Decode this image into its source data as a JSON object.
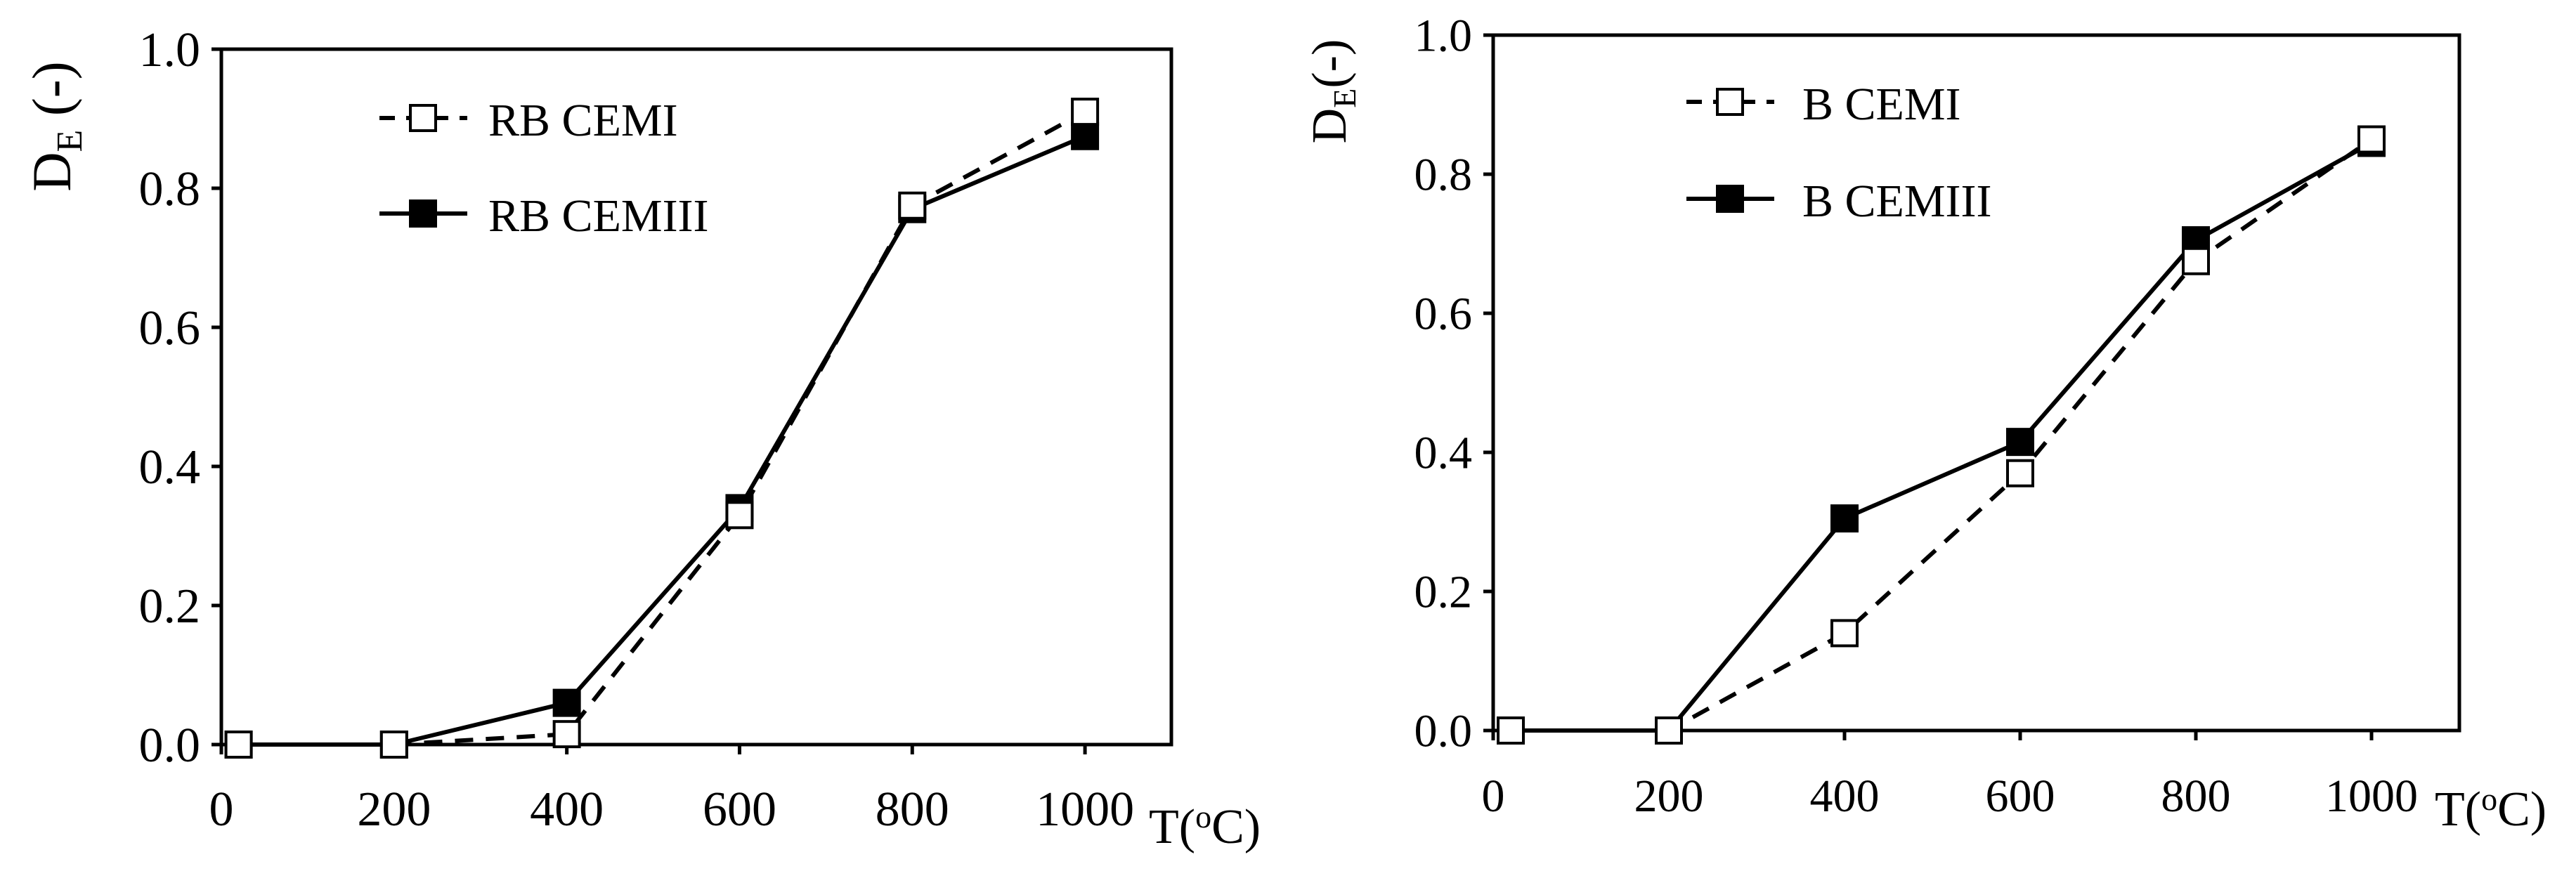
{
  "colors": {
    "line": "#000000",
    "background": "#ffffff",
    "filled_marker": "#000000",
    "open_marker": "#ffffff"
  },
  "chart_data": [
    {
      "type": "line",
      "title": "",
      "ylabel_main": "D",
      "ylabel_sub": "E",
      "ylabel_suffix": " (-)",
      "xlabel_prefix": "T(",
      "xlabel_sup": "o",
      "xlabel_suffix": "C)",
      "xlim": [
        0,
        1100
      ],
      "ylim": [
        0,
        1.0
      ],
      "xticks": [
        0,
        200,
        400,
        600,
        800,
        1000
      ],
      "xtick_labels": [
        "0",
        "200",
        "400",
        "600",
        "800",
        "1000"
      ],
      "yticks": [
        0,
        0.2,
        0.4,
        0.6,
        0.8,
        1.0
      ],
      "ytick_labels": [
        "0.0",
        "0.2",
        "0.4",
        "0.6",
        "0.8",
        "1.0"
      ],
      "grid": false,
      "legend_position": "top-center",
      "series": [
        {
          "name": "RB CEMI",
          "line_style": "dashed",
          "marker": "open-square",
          "x": [
            20,
            200,
            400,
            600,
            800,
            1000
          ],
          "values": [
            0.0,
            0.0,
            0.015,
            0.33,
            0.775,
            0.91
          ]
        },
        {
          "name": "RB CEMIII",
          "line_style": "solid",
          "marker": "filled-square",
          "x": [
            20,
            200,
            400,
            600,
            800,
            1000
          ],
          "values": [
            0.0,
            0.0,
            0.06,
            0.34,
            0.77,
            0.875
          ]
        }
      ]
    },
    {
      "type": "line",
      "title": "",
      "ylabel_main": "D",
      "ylabel_sub": "E",
      "ylabel_suffix": "(-)",
      "xlabel_prefix": "T(",
      "xlabel_sup": "o",
      "xlabel_suffix": "C)",
      "xlim": [
        0,
        1100
      ],
      "ylim": [
        0,
        1.0
      ],
      "xticks": [
        0,
        200,
        400,
        600,
        800,
        1000
      ],
      "xtick_labels": [
        "0",
        "200",
        "400",
        "600",
        "800",
        "1000"
      ],
      "yticks": [
        0,
        0.2,
        0.4,
        0.6,
        0.8,
        1.0
      ],
      "ytick_labels": [
        "0.0",
        "0.2",
        "0.4",
        "0.6",
        "0.8",
        "1.0"
      ],
      "grid": false,
      "legend_position": "top-center",
      "series": [
        {
          "name": "B CEMI",
          "line_style": "dashed",
          "marker": "open-square",
          "x": [
            20,
            200,
            400,
            600,
            800,
            1000
          ],
          "values": [
            0.0,
            0.0,
            0.14,
            0.37,
            0.675,
            0.85
          ]
        },
        {
          "name": "B CEMIII",
          "line_style": "solid",
          "marker": "filled-square",
          "x": [
            20,
            200,
            400,
            600,
            800,
            1000
          ],
          "values": [
            0.0,
            0.0,
            0.305,
            0.415,
            0.705,
            0.845
          ]
        }
      ]
    }
  ]
}
